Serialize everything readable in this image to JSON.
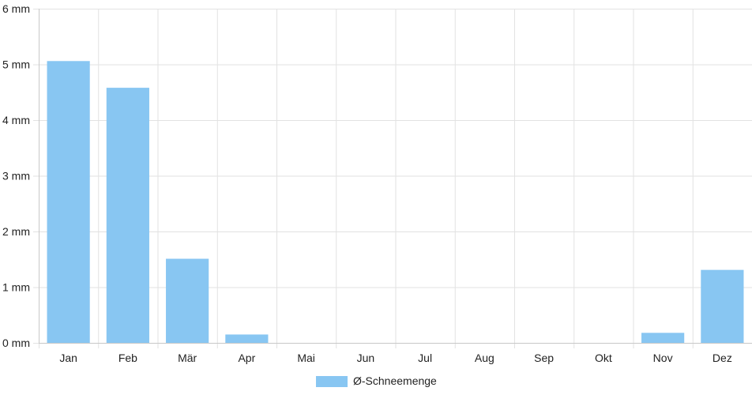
{
  "chart_data": {
    "type": "bar",
    "categories": [
      "Jan",
      "Feb",
      "Mär",
      "Apr",
      "Mai",
      "Jun",
      "Jul",
      "Aug",
      "Sep",
      "Okt",
      "Nov",
      "Dez"
    ],
    "series": [
      {
        "name": "Ø-Schneemenge",
        "values": [
          5.06,
          4.58,
          1.51,
          0.15,
          0,
          0,
          0,
          0,
          0,
          0,
          0.18,
          1.31
        ],
        "color": "#88c6f2"
      }
    ],
    "y_ticks": [
      "0 mm",
      "1 mm",
      "2 mm",
      "3 mm",
      "4 mm",
      "5 mm",
      "6 mm"
    ],
    "ylim": [
      0,
      6
    ],
    "grid": true,
    "legend_position": "bottom-center"
  }
}
